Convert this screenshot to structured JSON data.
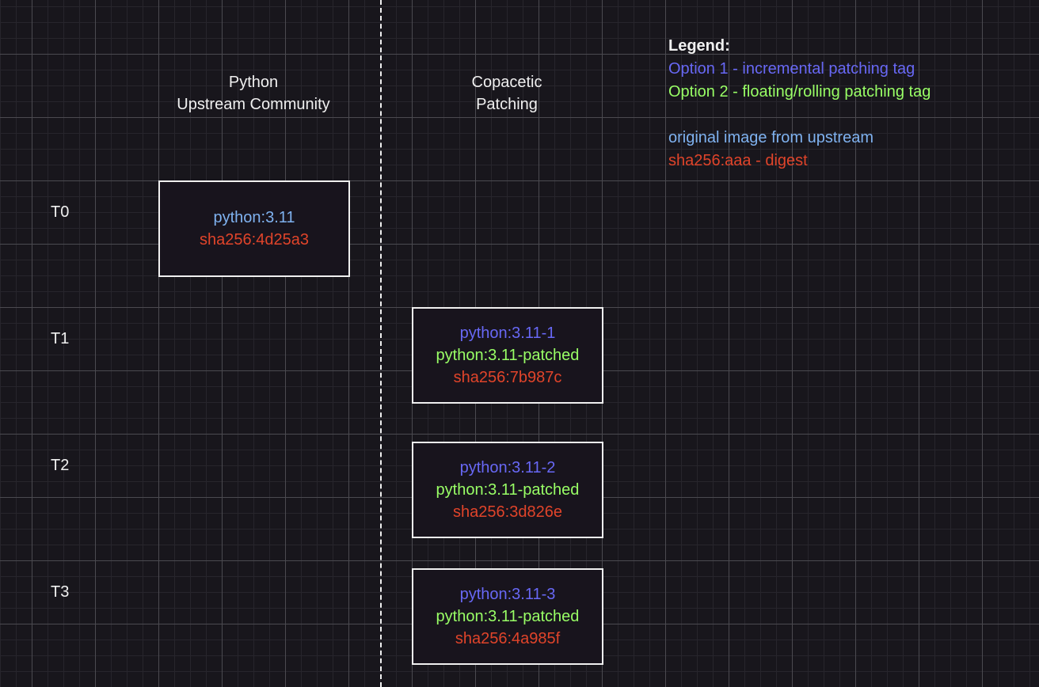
{
  "colors": {
    "upstream": "#7fb2f0",
    "option1": "#6868f5",
    "option2": "#99ff66",
    "digest": "#e0442a",
    "text": "#f0f0f0"
  },
  "columns": {
    "upstream": [
      "Python",
      "Upstream Community"
    ],
    "copacetic": [
      "Copacetic",
      "Patching"
    ]
  },
  "times": [
    "T0",
    "T1",
    "T2",
    "T3"
  ],
  "upstream_box": {
    "tag": "python:3.11",
    "digest": "sha256:4d25a3"
  },
  "patched_boxes": [
    {
      "option1": "python:3.11-1",
      "option2": "python:3.11-patched",
      "digest": "sha256:7b987c"
    },
    {
      "option1": "python:3.11-2",
      "option2": "python:3.11-patched",
      "digest": "sha256:3d826e"
    },
    {
      "option1": "python:3.11-3",
      "option2": "python:3.11-patched",
      "digest": "sha256:4a985f"
    }
  ],
  "legend": {
    "title": "Legend:",
    "option1": "Option 1 - incremental patching tag",
    "option2": "Option 2 - floating/rolling patching tag",
    "upstream": "original image from upstream",
    "digest": "sha256:aaa - digest"
  }
}
